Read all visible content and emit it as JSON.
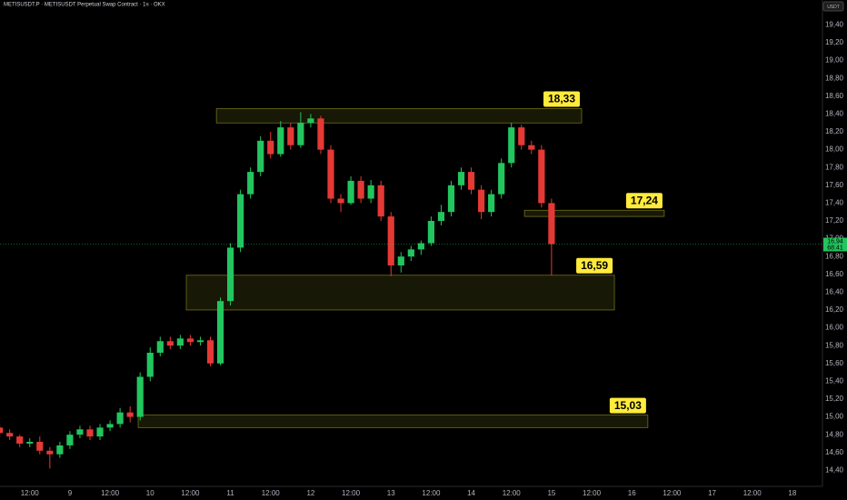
{
  "chart_data": {
    "type": "candlestick",
    "title": "METISUSDT.P · METISUSDT Perpetual Swap Contract · 1ч · OKX",
    "currency": "USDT",
    "up_color": "#22c55e",
    "down_color": "#e53935",
    "x": [
      -21,
      -18,
      -15,
      -12,
      -9,
      -6,
      -3,
      0,
      3,
      6,
      9,
      12,
      15,
      18,
      21,
      24,
      27,
      30,
      33,
      36,
      39,
      42,
      45,
      48,
      51,
      54,
      57,
      60,
      63,
      66,
      69,
      72,
      75,
      78,
      81,
      84,
      87,
      90,
      93,
      96,
      99,
      102,
      105,
      108,
      111,
      114,
      117,
      120,
      123,
      126,
      129,
      132,
      135,
      138,
      141,
      144
    ],
    "open": [
      14.88,
      14.82,
      14.78,
      14.7,
      14.72,
      14.62,
      14.58,
      14.68,
      14.8,
      14.86,
      14.78,
      14.88,
      14.92,
      15.05,
      15.0,
      15.45,
      15.72,
      15.85,
      15.8,
      15.88,
      15.84,
      15.86,
      15.6,
      16.3,
      16.9,
      17.5,
      17.75,
      18.1,
      17.95,
      18.25,
      18.05,
      18.3,
      18.35,
      18.0,
      17.45,
      17.4,
      17.65,
      17.45,
      17.6,
      17.25,
      16.7,
      16.8,
      16.88,
      16.95,
      17.2,
      17.3,
      17.6,
      17.75,
      17.55,
      17.3,
      17.5,
      17.85,
      18.25,
      18.05,
      18.0,
      17.4
    ],
    "high": [
      14.92,
      14.86,
      14.8,
      14.76,
      14.78,
      14.66,
      14.72,
      14.84,
      14.9,
      14.9,
      14.92,
      14.96,
      15.1,
      15.12,
      15.5,
      15.78,
      15.9,
      15.9,
      15.92,
      15.92,
      15.9,
      15.9,
      16.34,
      16.95,
      17.55,
      17.8,
      18.15,
      18.2,
      18.32,
      18.3,
      18.42,
      18.4,
      18.38,
      18.05,
      17.5,
      17.7,
      17.7,
      17.66,
      17.65,
      17.3,
      16.85,
      16.92,
      16.98,
      17.25,
      17.38,
      17.65,
      17.8,
      17.8,
      17.6,
      17.55,
      17.9,
      18.3,
      18.28,
      18.1,
      18.05,
      17.45
    ],
    "low": [
      14.78,
      14.74,
      14.66,
      14.66,
      14.58,
      14.42,
      14.54,
      14.64,
      14.76,
      14.74,
      14.74,
      14.84,
      14.88,
      14.94,
      14.96,
      15.4,
      15.68,
      15.76,
      15.76,
      15.8,
      15.8,
      15.57,
      15.58,
      16.25,
      16.85,
      17.45,
      17.7,
      17.9,
      17.92,
      18.0,
      18.02,
      18.25,
      17.95,
      17.4,
      17.3,
      17.38,
      17.4,
      17.4,
      17.2,
      16.58,
      16.62,
      16.75,
      16.82,
      16.92,
      17.15,
      17.25,
      17.55,
      17.5,
      17.22,
      17.25,
      17.45,
      17.8,
      18.0,
      17.95,
      17.35,
      16.59
    ],
    "close": [
      14.82,
      14.78,
      14.7,
      14.72,
      14.62,
      14.58,
      14.68,
      14.8,
      14.86,
      14.78,
      14.88,
      14.92,
      15.05,
      15.0,
      15.45,
      15.72,
      15.85,
      15.8,
      15.88,
      15.84,
      15.86,
      15.6,
      16.3,
      16.9,
      17.5,
      17.75,
      18.1,
      17.95,
      18.25,
      18.05,
      18.3,
      18.35,
      18.0,
      17.45,
      17.4,
      17.65,
      17.45,
      17.6,
      17.25,
      16.7,
      16.8,
      16.88,
      16.95,
      17.2,
      17.3,
      17.6,
      17.75,
      17.55,
      17.3,
      17.5,
      17.85,
      18.25,
      18.05,
      18.0,
      17.4,
      16.94
    ],
    "xlim": [
      -20.9,
      225
    ],
    "ylim": [
      14.22,
      19.68
    ],
    "xticks": [
      {
        "value": -12,
        "label": "12:00"
      },
      {
        "value": 0,
        "label": "9"
      },
      {
        "value": 12,
        "label": "12:00"
      },
      {
        "value": 24,
        "label": "10"
      },
      {
        "value": 36,
        "label": "12:00"
      },
      {
        "value": 48,
        "label": "11"
      },
      {
        "value": 60,
        "label": "12:00"
      },
      {
        "value": 72,
        "label": "12"
      },
      {
        "value": 84,
        "label": "12:00"
      },
      {
        "value": 96,
        "label": "13"
      },
      {
        "value": 108,
        "label": "12:00"
      },
      {
        "value": 120,
        "label": "14"
      },
      {
        "value": 132,
        "label": "12:00"
      },
      {
        "value": 144,
        "label": "15"
      },
      {
        "value": 156,
        "label": "12:00"
      },
      {
        "value": 168,
        "label": "16"
      },
      {
        "value": 180,
        "label": "12:00"
      },
      {
        "value": 192,
        "label": "17"
      },
      {
        "value": 204,
        "label": "12:00"
      },
      {
        "value": 216,
        "label": "18"
      }
    ],
    "yticks": [
      {
        "value": 14.4,
        "label": "14,40"
      },
      {
        "value": 14.6,
        "label": "14,60"
      },
      {
        "value": 14.8,
        "label": "14,80"
      },
      {
        "value": 15.0,
        "label": "15,00"
      },
      {
        "value": 15.2,
        "label": "15,20"
      },
      {
        "value": 15.4,
        "label": "15,40"
      },
      {
        "value": 15.6,
        "label": "15,60"
      },
      {
        "value": 15.8,
        "label": "15,80"
      },
      {
        "value": 16.0,
        "label": "16,00"
      },
      {
        "value": 16.2,
        "label": "16,20"
      },
      {
        "value": 16.4,
        "label": "16,40"
      },
      {
        "value": 16.6,
        "label": "16,60"
      },
      {
        "value": 16.8,
        "label": "16,80"
      },
      {
        "value": 17.0,
        "label": "17,00"
      },
      {
        "value": 17.2,
        "label": "17,20"
      },
      {
        "value": 17.4,
        "label": "17,40"
      },
      {
        "value": 17.6,
        "label": "17,60"
      },
      {
        "value": 17.8,
        "label": "17,80"
      },
      {
        "value": 18.0,
        "label": "18,00"
      },
      {
        "value": 18.2,
        "label": "18,20"
      },
      {
        "value": 18.4,
        "label": "18,40"
      },
      {
        "value": 18.6,
        "label": "18,60"
      },
      {
        "value": 18.8,
        "label": "18,80"
      },
      {
        "value": 19.0,
        "label": "19,00"
      },
      {
        "value": 19.2,
        "label": "19,20"
      },
      {
        "value": 19.4,
        "label": "19,40"
      }
    ],
    "zones": [
      {
        "x0": 43.8,
        "x1": 153,
        "y0": 18.3,
        "y1": 18.46,
        "label": {
          "value": 18.33,
          "label": "18,33"
        }
      },
      {
        "x0": 135.9,
        "x1": 177.7,
        "y0": 17.25,
        "y1": 17.32,
        "label": {
          "value": 17.24,
          "label": "17,24"
        }
      },
      {
        "x0": 34.8,
        "x1": 162.8,
        "y0": 16.2,
        "y1": 16.59,
        "label": {
          "value": 16.59,
          "label": "16,59"
        }
      },
      {
        "x0": 20.4,
        "x1": 172.8,
        "y0": 14.88,
        "y1": 15.02,
        "label": {
          "value": 15.03,
          "label": "15,03"
        }
      }
    ],
    "zone_color": "#c8c832",
    "label_color": "#ffeb3b",
    "last_price": {
      "value": 16.94,
      "label": "16,94"
    },
    "countdown": "68:41"
  }
}
